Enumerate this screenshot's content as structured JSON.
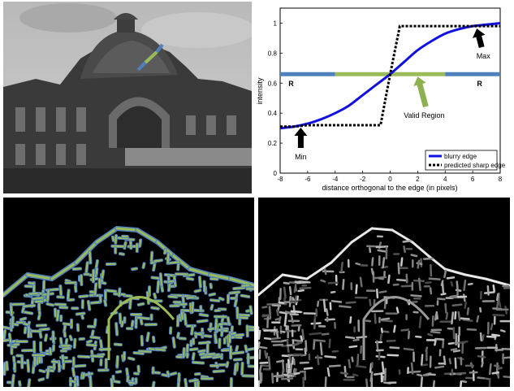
{
  "chart_data": {
    "type": "line",
    "title": "",
    "xlabel": "distance orthogonal to the edge (in pixels)",
    "ylabel": "intensity",
    "xlim": [
      -8,
      8
    ],
    "ylim": [
      0,
      1.1
    ],
    "xticks": [
      -8,
      -6,
      -4,
      -2,
      0,
      2,
      4,
      6,
      8
    ],
    "yticks": [
      0,
      0.2,
      0.4,
      0.6,
      0.8,
      1
    ],
    "grid": false,
    "legend_position": "bottom-right",
    "series": [
      {
        "name": "blurry edge",
        "style": "solid",
        "color": "#1010e0",
        "x": [
          -8,
          -7,
          -6,
          -5,
          -4,
          -3,
          -2,
          -1,
          0,
          1,
          2,
          3,
          4,
          5,
          6,
          7,
          8
        ],
        "y": [
          0.3,
          0.31,
          0.33,
          0.36,
          0.4,
          0.45,
          0.52,
          0.59,
          0.66,
          0.74,
          0.82,
          0.88,
          0.93,
          0.96,
          0.98,
          0.99,
          1.0
        ]
      },
      {
        "name": "predicted sharp edge",
        "style": "dotted",
        "color": "#000000",
        "x": [
          -8,
          -7,
          -6,
          -5,
          -4,
          -3,
          -2,
          -1,
          -0.7,
          0,
          0.7,
          1,
          2,
          3,
          4,
          5,
          6,
          7,
          8
        ],
        "y": [
          0.31,
          0.31,
          0.32,
          0.32,
          0.32,
          0.32,
          0.32,
          0.32,
          0.32,
          0.66,
          0.98,
          0.98,
          0.98,
          0.98,
          0.98,
          0.98,
          0.98,
          0.98,
          0.98
        ]
      }
    ],
    "bands": [
      {
        "label": "R",
        "color": "#4f81bd",
        "y": 0.66,
        "x_range": [
          -8,
          -4
        ],
        "label_x": -7.2
      },
      {
        "label": "",
        "color": "#9bbb59",
        "y": 0.66,
        "x_range": [
          -4,
          4
        ]
      },
      {
        "label": "R",
        "color": "#4f81bd",
        "y": 0.66,
        "x_range": [
          4,
          8
        ],
        "label_x": 6.5
      }
    ],
    "annotations": [
      {
        "text": "Min",
        "x": -6.5,
        "y": 0.32,
        "arrow_color": "#000000"
      },
      {
        "text": "Max",
        "x": 6.3,
        "y": 0.98,
        "arrow_color": "#000000"
      },
      {
        "text": "Valid  Region",
        "x": 2,
        "y": 0.66,
        "arrow_color": "#8db050"
      }
    ]
  },
  "panels": {
    "photo": "photo of a domed building with a highlighted edge segment",
    "edges_green": "edge map (green strokes with blue outline)",
    "edges_gray": "edge sharpness map (gray)"
  }
}
